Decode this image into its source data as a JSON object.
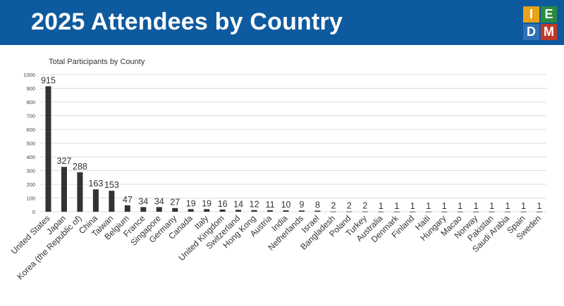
{
  "slide": {
    "title": "2025 Attendees by Country"
  },
  "logo": {
    "letters": [
      "I",
      "E",
      "D",
      "M"
    ],
    "colors": [
      "#e8a317",
      "#2a8a3e",
      "#2f6fb8",
      "#c0392b"
    ]
  },
  "colors": {
    "header_bg": "#0d5a9e",
    "bar": "#333333",
    "grid": "#dcdcdc"
  },
  "chart_data": {
    "type": "bar",
    "title": "Total Participants by County",
    "xlabel": "",
    "ylabel": "",
    "ylim": [
      0,
      1000
    ],
    "yticks": [
      0,
      100,
      200,
      300,
      400,
      500,
      600,
      700,
      800,
      900,
      1000
    ],
    "grid": true,
    "categories": [
      "United States",
      "Japan",
      "Korea (the Republic of)",
      "China",
      "Taiwan",
      "Belgium",
      "France",
      "Singapore",
      "Germany",
      "Canada",
      "Italy",
      "United Kingdom",
      "Switzerland",
      "Hong Kong",
      "Austria",
      "India",
      "Netherlands",
      "Israel",
      "Bangladesh",
      "Poland",
      "Turkey",
      "Australia",
      "Denmark",
      "Finland",
      "Haiti",
      "Hungary",
      "Macao",
      "Norway",
      "Pakistan",
      "Saudi Arabia",
      "Spain",
      "Sweden"
    ],
    "values": [
      915,
      327,
      288,
      163,
      153,
      47,
      34,
      34,
      27,
      19,
      19,
      16,
      14,
      12,
      11,
      10,
      9,
      8,
      2,
      2,
      2,
      1,
      1,
      1,
      1,
      1,
      1,
      1,
      1,
      1,
      1,
      1
    ]
  }
}
